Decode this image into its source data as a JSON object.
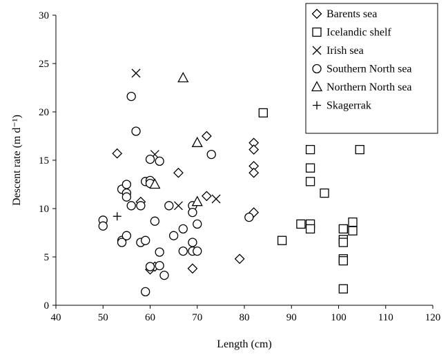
{
  "chart_data": {
    "type": "scatter",
    "title": "",
    "xlabel": "Length (cm)",
    "ylabel": "Descent rate  (m d⁻¹)",
    "xlim": [
      40,
      120
    ],
    "ylim": [
      0,
      30
    ],
    "xticks": [
      "40",
      "50",
      "60",
      "70",
      "80",
      "90",
      "100",
      "110",
      "120"
    ],
    "yticks": [
      "0",
      "5",
      "10",
      "15",
      "20",
      "25",
      "30"
    ],
    "grid": false,
    "legend_position": "top-right",
    "series": [
      {
        "name": "Barents sea",
        "marker": "diamond",
        "points": [
          [
            53,
            15.7
          ],
          [
            58,
            10.7
          ],
          [
            60,
            3.7
          ],
          [
            61,
            4.0
          ],
          [
            66,
            13.7
          ],
          [
            69,
            3.8
          ],
          [
            72,
            17.5
          ],
          [
            72,
            11.3
          ],
          [
            79,
            4.8
          ],
          [
            82,
            16.8
          ],
          [
            82,
            16.1
          ],
          [
            82,
            14.4
          ],
          [
            82,
            13.7
          ],
          [
            82,
            9.6
          ]
        ]
      },
      {
        "name": "Icelandic shelf",
        "marker": "square",
        "points": [
          [
            84,
            19.9
          ],
          [
            88,
            6.7
          ],
          [
            92,
            8.4
          ],
          [
            94,
            16.1
          ],
          [
            94,
            14.2
          ],
          [
            94,
            12.8
          ],
          [
            94,
            8.4
          ],
          [
            94,
            7.9
          ],
          [
            97,
            11.6
          ],
          [
            101,
            7.9
          ],
          [
            101,
            6.8
          ],
          [
            101,
            6.5
          ],
          [
            101,
            4.8
          ],
          [
            101,
            4.6
          ],
          [
            101,
            1.7
          ],
          [
            103,
            8.6
          ],
          [
            103,
            7.7
          ],
          [
            104.5,
            16.1
          ]
        ]
      },
      {
        "name": "Irish sea",
        "marker": "x",
        "points": [
          [
            57,
            24.0
          ],
          [
            61,
            15.6
          ],
          [
            66,
            10.3
          ],
          [
            74,
            11.0
          ]
        ]
      },
      {
        "name": "Southern North sea",
        "marker": "circle",
        "points": [
          [
            50,
            8.8
          ],
          [
            50,
            8.2
          ],
          [
            54,
            12.0
          ],
          [
            54,
            6.7
          ],
          [
            54,
            6.5
          ],
          [
            55,
            11.6
          ],
          [
            55,
            12.5
          ],
          [
            55,
            11.2
          ],
          [
            55,
            7.2
          ],
          [
            56,
            21.6
          ],
          [
            56,
            10.3
          ],
          [
            57,
            18.0
          ],
          [
            58,
            10.3
          ],
          [
            58,
            6.5
          ],
          [
            59,
            12.8
          ],
          [
            59,
            6.7
          ],
          [
            59,
            1.4
          ],
          [
            60,
            15.1
          ],
          [
            60,
            12.9
          ],
          [
            60,
            12.6
          ],
          [
            60,
            4.0
          ],
          [
            61,
            8.7
          ],
          [
            62,
            14.9
          ],
          [
            62,
            5.5
          ],
          [
            62,
            4.1
          ],
          [
            63,
            3.1
          ],
          [
            64,
            10.3
          ],
          [
            65,
            7.2
          ],
          [
            67,
            7.9
          ],
          [
            67,
            5.6
          ],
          [
            69,
            10.3
          ],
          [
            69,
            9.6
          ],
          [
            69,
            6.5
          ],
          [
            69,
            5.6
          ],
          [
            70,
            8.4
          ],
          [
            70,
            5.6
          ],
          [
            73,
            15.6
          ],
          [
            81,
            9.1
          ]
        ]
      },
      {
        "name": "Northern North sea",
        "marker": "triangle",
        "points": [
          [
            61,
            12.5
          ],
          [
            67,
            23.5
          ],
          [
            70,
            16.8
          ],
          [
            70,
            10.7
          ]
        ]
      },
      {
        "name": "Skagerrak",
        "marker": "plus",
        "points": [
          [
            53,
            9.2
          ]
        ]
      }
    ]
  }
}
